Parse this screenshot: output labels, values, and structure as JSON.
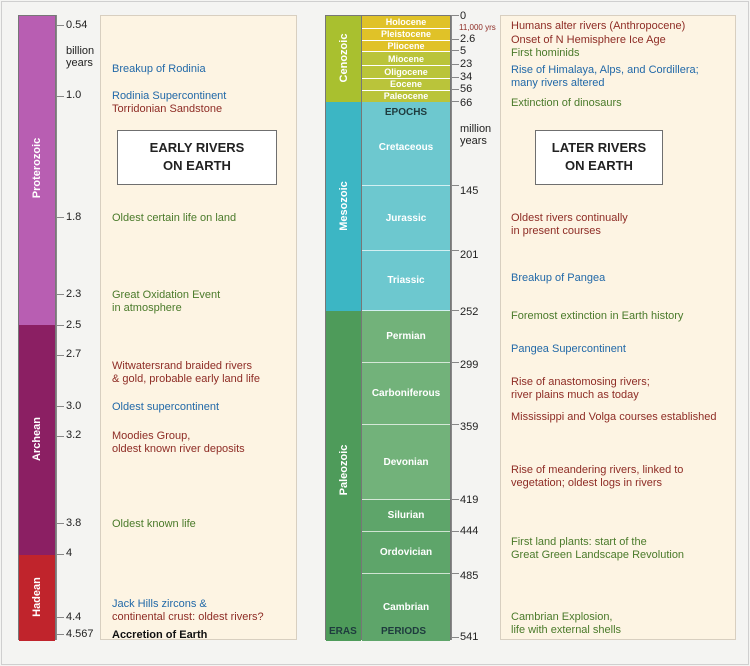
{
  "left": {
    "title": "EARLY RIVERS\nON EARTH",
    "unit": "billion\nyears",
    "eons": [
      {
        "name": "Proterozoic",
        "color": "#b85eb2"
      },
      {
        "name": "Archean",
        "color": "#8b1f63"
      },
      {
        "name": "Hadean",
        "color": "#c0242c"
      }
    ],
    "ticks": [
      "0.54",
      "1.0",
      "1.8",
      "2.3",
      "2.5",
      "2.7",
      "3.0",
      "3.2",
      "3.8",
      "4",
      "4.4",
      "4.567"
    ],
    "events": [
      {
        "text": "Breakup of Rodinia",
        "color": "blue"
      },
      {
        "text": "Rodinia Supercontinent",
        "color": "blue"
      },
      {
        "text": "Torridonian Sandstone",
        "color": "red"
      },
      {
        "text": "Oldest certain life on land",
        "color": "green"
      },
      {
        "text": "Great Oxidation Event\nin atmosphere",
        "color": "green"
      },
      {
        "text": "Witwatersrand braided rivers\n& gold, probable early land life",
        "color": "red"
      },
      {
        "text": "Oldest supercontinent",
        "color": "blue"
      },
      {
        "text": "Moodies Group,\noldest known river deposits",
        "color": "red"
      },
      {
        "text": "Oldest known life",
        "color": "green"
      },
      {
        "text": "Jack Hills zircons &",
        "color": "blue"
      },
      {
        "text": "continental crust: oldest rivers?",
        "color": "red"
      },
      {
        "text": "Accretion of Earth",
        "color": "black"
      }
    ]
  },
  "right": {
    "title": "LATER RIVERS\nON EARTH",
    "unit": "million\nyears",
    "eras": [
      {
        "name": "Cenozoic",
        "color": "#a9c02f"
      },
      {
        "name": "Mesozoic",
        "color": "#3cb6c4"
      },
      {
        "name": "Paleozoic",
        "color": "#4e9b5a"
      }
    ],
    "epochs_header": "EPOCHS",
    "epochs": [
      "Holocene",
      "Pleistocene",
      "Pliocene",
      "Miocene",
      "Oligocene",
      "Eocene",
      "Paleocene"
    ],
    "periods": [
      "Cretaceous",
      "Jurassic",
      "Triassic",
      "Permian",
      "Carboniferous",
      "Devonian",
      "Silurian",
      "Ordovician",
      "Cambrian"
    ],
    "eras_footer": "ERAS",
    "periods_footer": "PERIODS",
    "ticks": [
      "0",
      "2.6",
      "5",
      "23",
      "34",
      "56",
      "66",
      "145",
      "201",
      "252",
      "299",
      "359",
      "419",
      "444",
      "485",
      "541"
    ],
    "holocene_years": "11,000 yrs",
    "events": [
      {
        "text": "Humans alter rivers (Anthropocene)",
        "color": "red"
      },
      {
        "text": "Onset of N Hemisphere Ice Age",
        "color": "red"
      },
      {
        "text": "First hominids",
        "color": "green"
      },
      {
        "text": "Rise of Himalaya, Alps, and Cordillera;\nmany rivers altered",
        "color": "blue"
      },
      {
        "text": "Extinction of dinosaurs",
        "color": "green"
      },
      {
        "text": "Oldest rivers continually\nin present courses",
        "color": "red"
      },
      {
        "text": "Breakup of Pangea",
        "color": "blue"
      },
      {
        "text": "Foremost extinction in Earth history",
        "color": "green"
      },
      {
        "text": "Pangea Supercontinent",
        "color": "blue"
      },
      {
        "text": "Rise of anastomosing rivers;\nriver plains much as today",
        "color": "red"
      },
      {
        "text": "Mississippi and Volga courses established",
        "color": "red"
      },
      {
        "text": "Rise of meandering rivers, linked to\nvegetation; oldest logs in rivers",
        "color": "red"
      },
      {
        "text": "First land plants: start of the\nGreat Green Landscape Revolution",
        "color": "green"
      },
      {
        "text": "Cambrian Explosion,\nlife with external shells",
        "color": "green"
      }
    ]
  }
}
